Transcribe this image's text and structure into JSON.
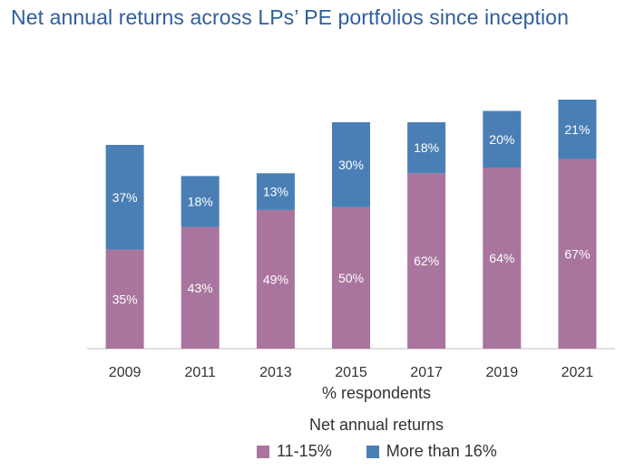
{
  "title": "Net annual returns across LPs’ PE portfolios since inception",
  "chart_data": {
    "type": "bar",
    "stacked": true,
    "categories": [
      "2009",
      "2011",
      "2013",
      "2015",
      "2017",
      "2019",
      "2021"
    ],
    "series": [
      {
        "name": "11-15%",
        "values": [
          35,
          43,
          49,
          50,
          62,
          64,
          67
        ],
        "labels": [
          "35%",
          "43%",
          "49%",
          "50%",
          "62%",
          "64%",
          "67%"
        ],
        "color": "#a9759f"
      },
      {
        "name": "More than 16%",
        "values": [
          37,
          18,
          13,
          30,
          18,
          20,
          21
        ],
        "labels": [
          "37%",
          "18%",
          "13%",
          "30%",
          "18%",
          "20%",
          "21%"
        ],
        "color": "#4a7fb5"
      }
    ],
    "xlabel": "% respondents",
    "legend_title": "Net annual returns",
    "legend_position": "bottom",
    "ylim": [
      0,
      88
    ],
    "grid": false,
    "axis_color": "#bfbfbf"
  }
}
